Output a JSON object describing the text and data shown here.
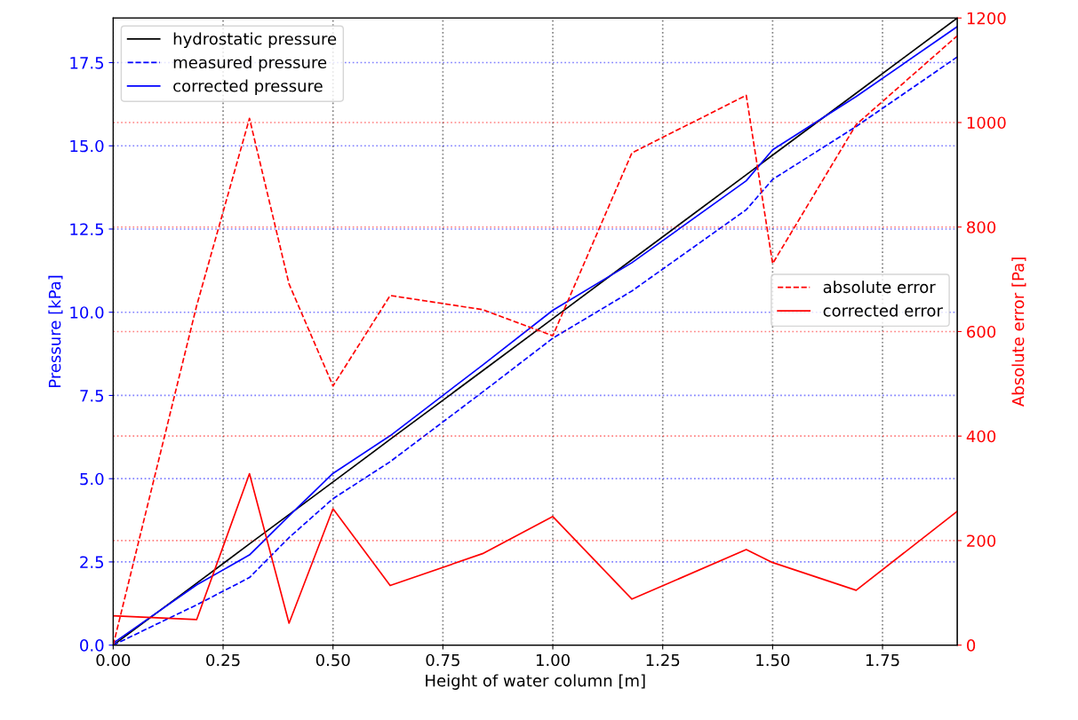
{
  "chart_data": {
    "type": "line",
    "xlabel": "Height of water column [m]",
    "ylabel": "Pressure [kPa]",
    "y2label": "Absolute error [Pa]",
    "x": [
      0,
      0.19,
      0.31,
      0.4,
      0.5,
      0.63,
      0.84,
      1.0,
      1.18,
      1.44,
      1.5,
      1.69,
      1.92
    ],
    "series": [
      {
        "name": "hydrostatic pressure",
        "color": "#000000",
        "line_style": "solid",
        "values": [
          0,
          1.86,
          3.04,
          3.92,
          4.9,
          6.18,
          8.24,
          9.81,
          11.58,
          14.13,
          14.72,
          16.58,
          18.84
        ]
      },
      {
        "name": "measured pressure",
        "color": "#0000ff",
        "line_style": "dashed",
        "values": [
          0,
          1.21,
          2.03,
          3.23,
          4.4,
          5.51,
          7.6,
          9.22,
          10.64,
          13.08,
          13.99,
          15.58,
          17.67
        ]
      },
      {
        "name": "corrected pressure",
        "color": "#0000ff",
        "line_style": "solid",
        "values": [
          0.06,
          1.81,
          2.71,
          3.88,
          5.16,
          6.29,
          8.41,
          10.06,
          11.49,
          13.95,
          14.88,
          16.48,
          18.58
        ]
      },
      {
        "name": "absolute error",
        "color": "#ff0000",
        "line_style": "dashed",
        "axis": "y2",
        "values": [
          0,
          650,
          1008,
          691,
          496,
          669,
          642,
          592,
          942,
          1052,
          730,
          996,
          1166
        ]
      },
      {
        "name": "corrected error",
        "color": "#ff0000",
        "line_style": "solid",
        "axis": "y2",
        "values": [
          56,
          49,
          328,
          42,
          261,
          114,
          175,
          246,
          88,
          183,
          158,
          105,
          256
        ]
      }
    ],
    "xlim": [
      0,
      1.92
    ],
    "xticks": [
      {
        "value": 0,
        "label": "0.00"
      },
      0.25,
      {
        "value": 0.5,
        "label": "0.50"
      },
      0.75,
      {
        "value": 1,
        "label": "1.00"
      },
      1.25,
      {
        "value": 1.5,
        "label": "1.50"
      },
      1.75
    ],
    "ylim": [
      0,
      18.84
    ],
    "yticks": [
      {
        "value": 0,
        "label": "0.0"
      },
      2.5,
      {
        "value": 5,
        "label": "5.0"
      },
      7.5,
      {
        "value": 10,
        "label": "10.0"
      },
      12.5,
      {
        "value": 15,
        "label": "15.0"
      },
      17.5
    ],
    "y2lim": [
      0,
      1200
    ],
    "y2ticks": [
      0,
      200,
      400,
      600,
      800,
      1000,
      1200
    ],
    "grid": true,
    "legend": "top left"
  }
}
